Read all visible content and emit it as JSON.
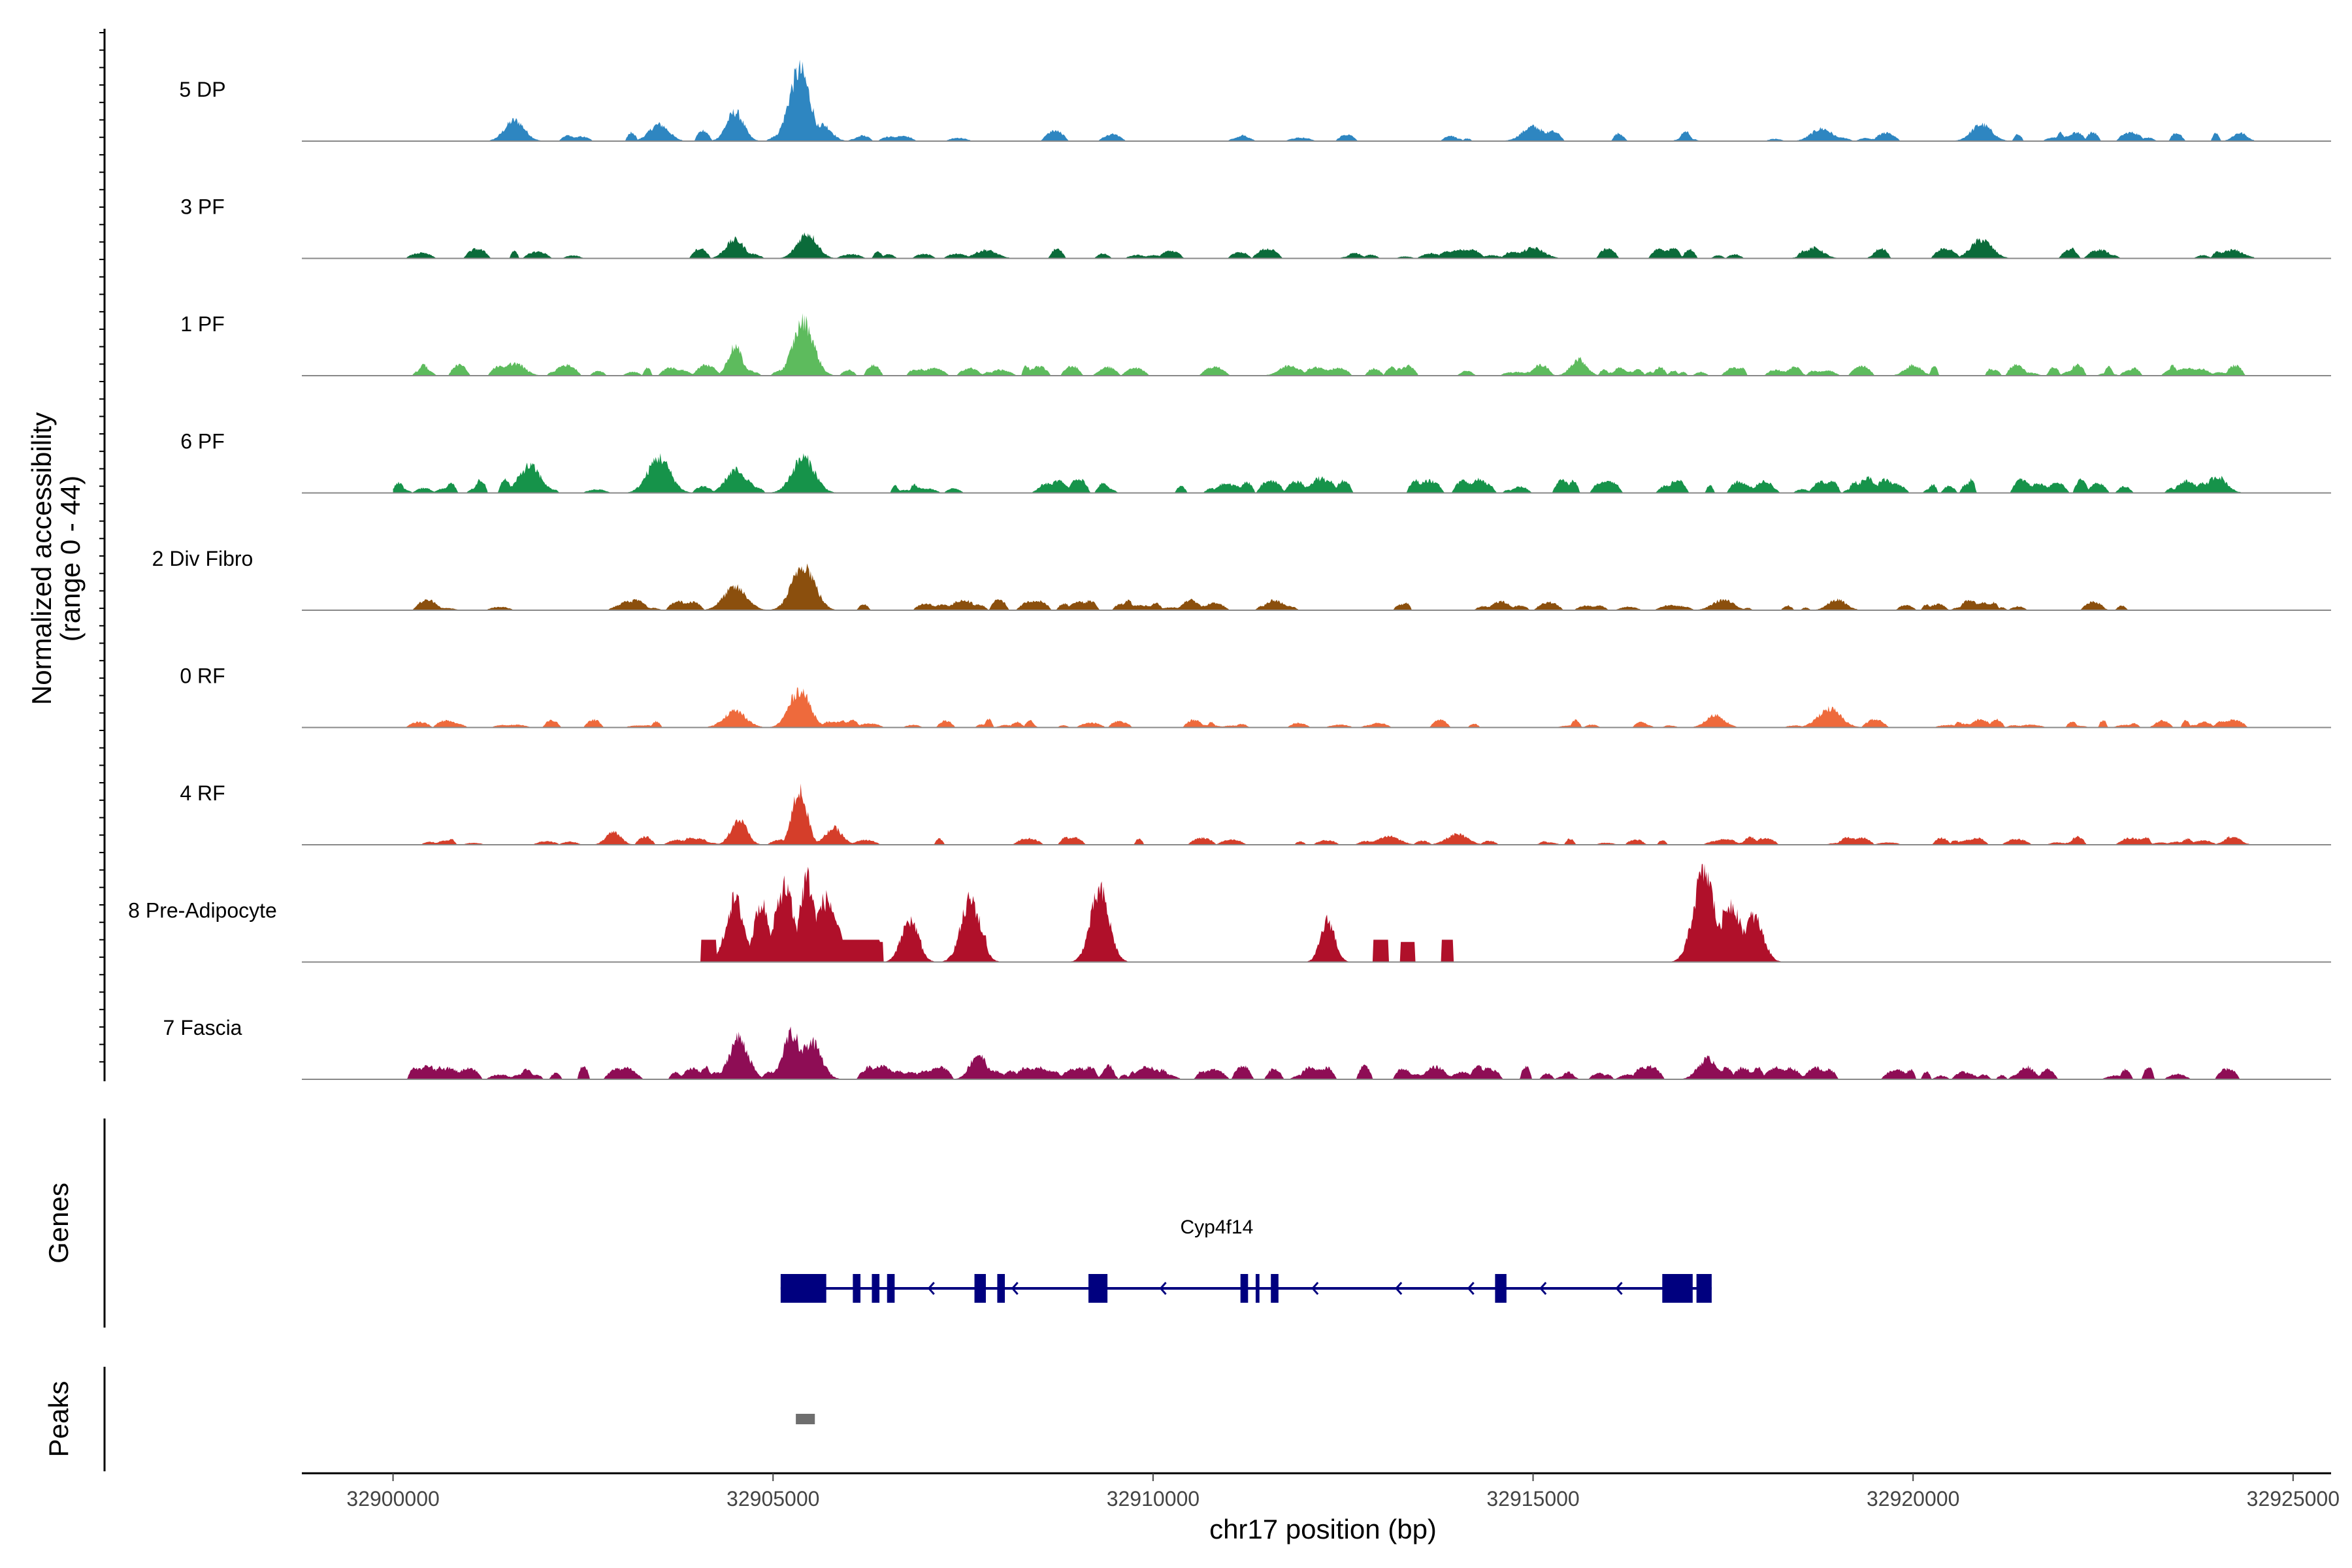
{
  "chart_data": {
    "type": "genome-coverage",
    "chromosome": "chr17",
    "xlabel": "chr17 position (bp)",
    "xlim": [
      32898800,
      32925500
    ],
    "xticks": [
      32900000,
      32905000,
      32910000,
      32915000,
      32920000,
      32925000
    ],
    "xtick_labels": [
      "32900000",
      "32905000",
      "32910000",
      "32915000",
      "32920000",
      "32925000"
    ],
    "ylabel_line1": "Normalized accessibility",
    "ylabel_line2": "(range 0 - 44)",
    "yrange": [
      0,
      44
    ],
    "coverage_start": 32900000,
    "coverage_end": 32924500,
    "tracks": [
      {
        "name": "5 DP",
        "color": "#2E86C1",
        "peaks": [
          [
            32901600,
            10
          ],
          [
            32903500,
            8
          ],
          [
            32904500,
            14
          ],
          [
            32905350,
            34
          ],
          [
            32905650,
            8
          ],
          [
            32915000,
            7
          ],
          [
            32918800,
            6
          ],
          [
            32920900,
            8
          ],
          [
            32924300,
            4
          ]
        ],
        "scatter": [
          [
            32902200,
            32924300,
            45,
            0.9,
            4
          ]
        ]
      },
      {
        "name": "3 PF",
        "color": "#0B6B3A",
        "peaks": [
          [
            32904500,
            9
          ],
          [
            32905450,
            12
          ],
          [
            32907800,
            4
          ],
          [
            32915000,
            5
          ],
          [
            32918700,
            5
          ],
          [
            32920900,
            9
          ],
          [
            32924200,
            4
          ]
        ],
        "scatter": [
          [
            32900200,
            32924300,
            60,
            0.8,
            4
          ]
        ]
      },
      {
        "name": "1 PF",
        "color": "#5DBB5D",
        "peaks": [
          [
            32901600,
            6
          ],
          [
            32904500,
            14
          ],
          [
            32905400,
            26
          ],
          [
            32911800,
            5
          ],
          [
            32915600,
            8
          ],
          [
            32920000,
            5
          ]
        ],
        "scatter": [
          [
            32900200,
            32924300,
            110,
            1.2,
            4
          ]
        ]
      },
      {
        "name": "6 PF",
        "color": "#16934A",
        "peaks": [
          [
            32901800,
            13
          ],
          [
            32903500,
            17
          ],
          [
            32904500,
            11
          ],
          [
            32905400,
            17
          ],
          [
            32912200,
            7
          ],
          [
            32919400,
            7
          ],
          [
            32924000,
            8
          ]
        ],
        "scatter": [
          [
            32900000,
            32924300,
            110,
            1.4,
            5
          ]
        ]
      },
      {
        "name": "2 Div Fibro",
        "color": "#8B4F0D",
        "peaks": [
          [
            32904500,
            11
          ],
          [
            32905400,
            22
          ],
          [
            32907500,
            5
          ],
          [
            32911600,
            5
          ],
          [
            32917500,
            5
          ],
          [
            32919000,
            5
          ]
        ],
        "scatter": [
          [
            32900200,
            32924300,
            70,
            1.0,
            4
          ]
        ]
      },
      {
        "name": "0 RF",
        "color": "#EE6A3C",
        "peaks": [
          [
            32904500,
            8
          ],
          [
            32905350,
            18
          ],
          [
            32917400,
            6
          ],
          [
            32918900,
            9
          ]
        ],
        "scatter": [
          [
            32900200,
            32924300,
            80,
            0.8,
            3
          ]
        ]
      },
      {
        "name": "4 RF",
        "color": "#D53E2A",
        "peaks": [
          [
            32902900,
            6
          ],
          [
            32904550,
            12
          ],
          [
            32905350,
            26
          ],
          [
            32905800,
            8
          ],
          [
            32913100,
            4
          ],
          [
            32914000,
            5
          ],
          [
            32924200,
            4
          ]
        ],
        "scatter": [
          [
            32900200,
            32924300,
            70,
            0.8,
            3
          ]
        ]
      },
      {
        "name": "8 Pre-Adipocyte",
        "color": "#B0102A",
        "peaks": [
          [
            32904500,
            30
          ],
          [
            32904850,
            28
          ],
          [
            32905150,
            36
          ],
          [
            32905450,
            40
          ],
          [
            32905700,
            30
          ],
          [
            32907600,
            30
          ],
          [
            32909300,
            34
          ],
          [
            32912300,
            20
          ],
          [
            32917250,
            44
          ],
          [
            32917600,
            28
          ],
          [
            32917900,
            22
          ],
          [
            32906800,
            20
          ]
        ],
        "blocks": [
          [
            32904050,
            32904250,
            10
          ],
          [
            32904750,
            32905700,
            10
          ],
          [
            32905700,
            32906400,
            10
          ],
          [
            32906150,
            32906450,
            9
          ],
          [
            32906800,
            32906950,
            10
          ],
          [
            32907450,
            32907800,
            12
          ],
          [
            32912250,
            32912400,
            8
          ],
          [
            32912900,
            32913100,
            10
          ],
          [
            32913250,
            32913450,
            9
          ],
          [
            32913800,
            32913950,
            10
          ],
          [
            32917100,
            32917350,
            14
          ],
          [
            32917450,
            32917750,
            11
          ],
          [
            32917850,
            32918000,
            10
          ]
        ]
      },
      {
        "name": "7 Fascia",
        "color": "#8E0D55",
        "peaks": [
          [
            32904550,
            20
          ],
          [
            32905250,
            22
          ],
          [
            32905500,
            18
          ],
          [
            32907700,
            12
          ],
          [
            32917300,
            10
          ],
          [
            32921500,
            6
          ]
        ],
        "scatter": [
          [
            32900200,
            32924300,
            130,
            1.5,
            5
          ]
        ]
      }
    ],
    "genes": [
      {
        "name": "Cyp4f14",
        "strand": "-",
        "start": 32905100,
        "end": 32917350,
        "exons": [
          [
            32905100,
            32905700
          ],
          [
            32906050,
            32906150
          ],
          [
            32906300,
            32906400
          ],
          [
            32906500,
            32906600
          ],
          [
            32907650,
            32907800
          ],
          [
            32907950,
            32908050
          ],
          [
            32909150,
            32909400
          ],
          [
            32911150,
            32911250
          ],
          [
            32911350,
            32911400
          ],
          [
            32911550,
            32911650
          ],
          [
            32914500,
            32914650
          ],
          [
            32916700,
            32917100
          ],
          [
            32917150,
            32917350
          ]
        ],
        "arrows": [
          32907050,
          32908150,
          32910100,
          32912100,
          32913200,
          32914150,
          32915100,
          32916100
        ]
      }
    ],
    "peaks_track": [
      [
        32905300,
        32905550
      ]
    ],
    "side_labels": [
      "Genes",
      "Peaks"
    ]
  }
}
